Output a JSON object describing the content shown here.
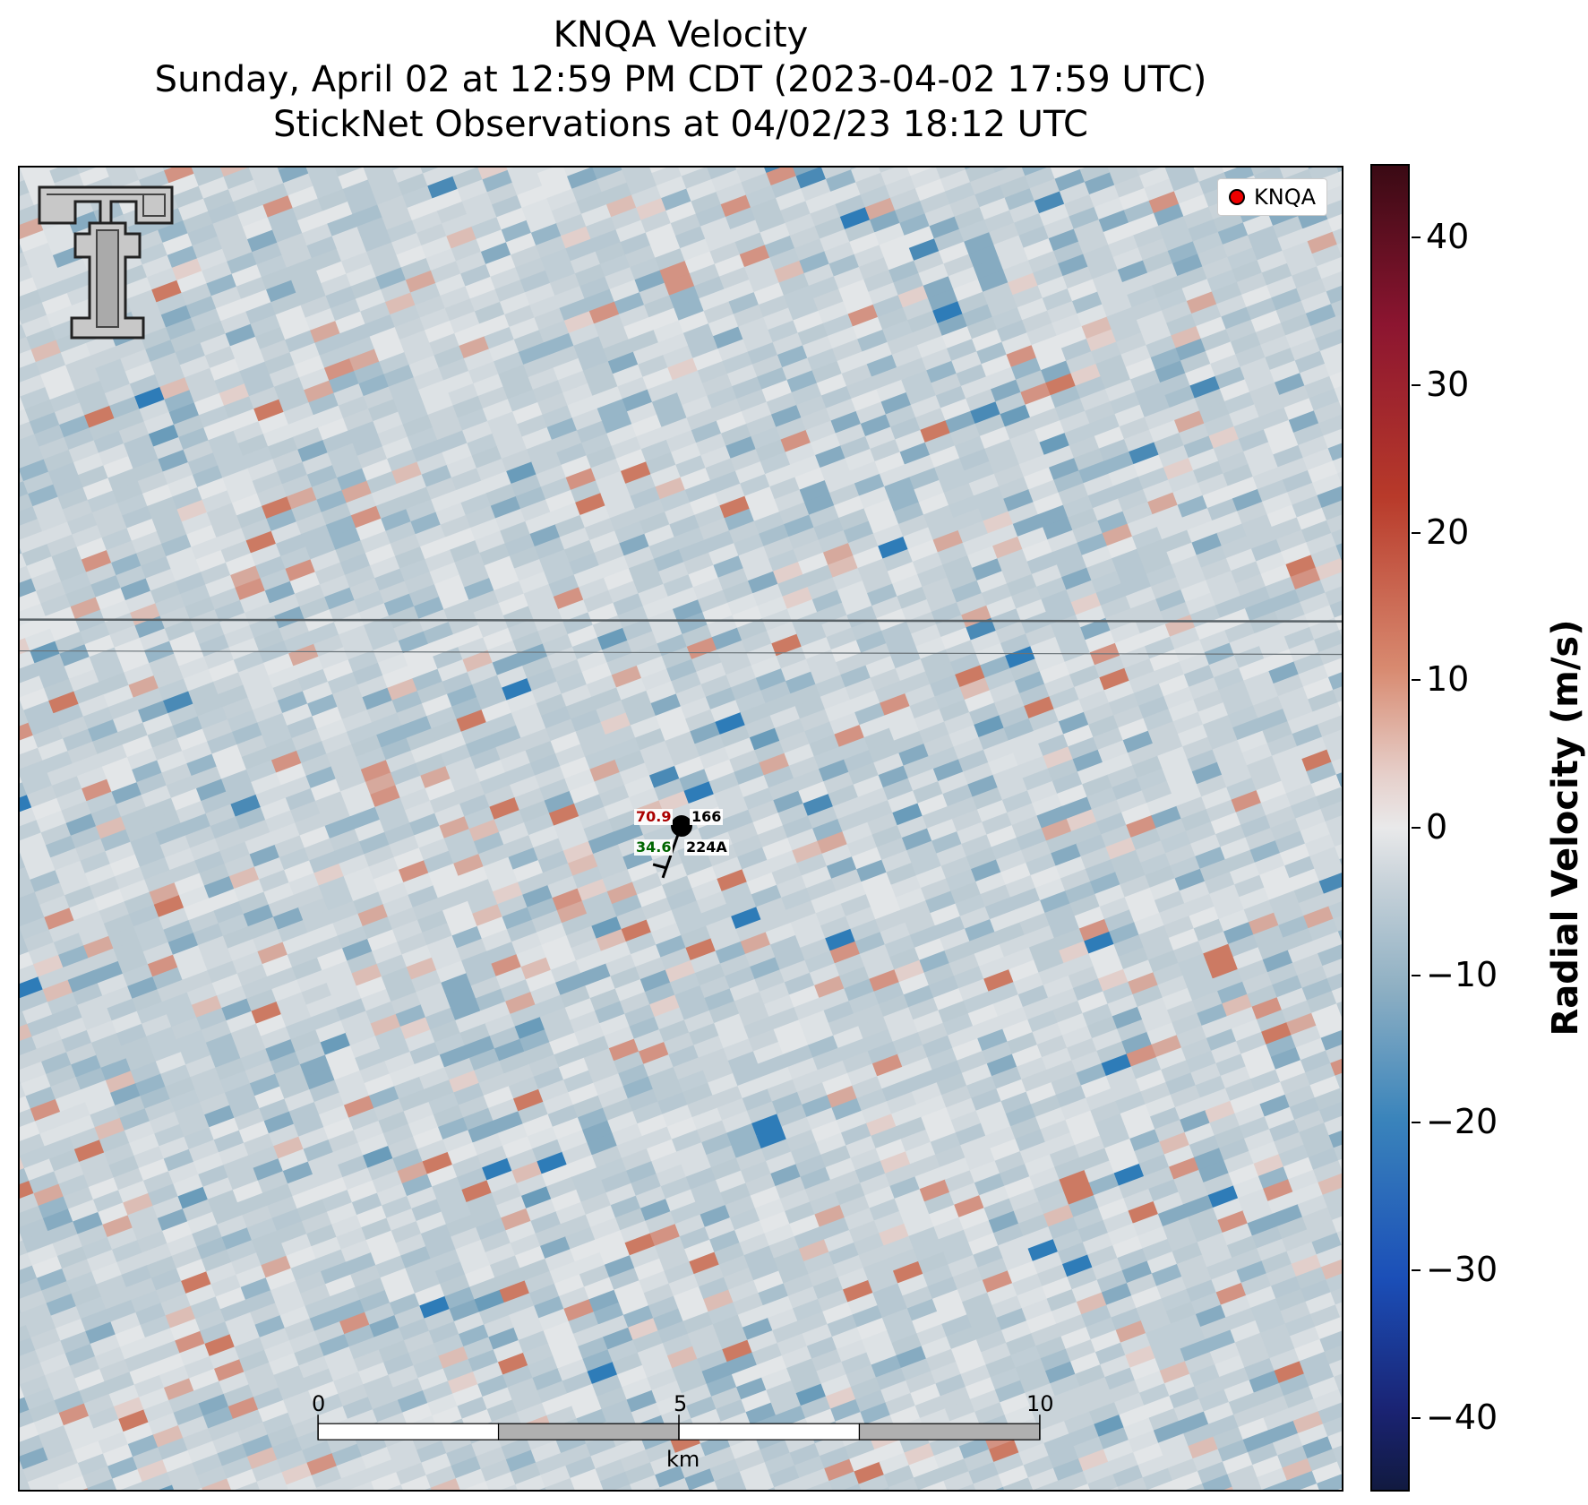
{
  "header": {
    "title": "KNQA Velocity",
    "subtitle1": "Sunday, April 02 at 12:59 PM CDT (2023-04-02 17:59 UTC)",
    "subtitle2": "StickNet Observations at 04/02/23 18:12 UTC"
  },
  "legend": {
    "label": "KNQA",
    "marker_color": "#ff0000"
  },
  "station": {
    "id": "224A",
    "temperature": "70.9",
    "dewpoint": "34.6",
    "pressure": "166",
    "temperature_color": "#aa0000",
    "dewpoint_color": "#006600"
  },
  "scale_bar": {
    "ticks": [
      "0",
      "5",
      "10"
    ],
    "unit": "km"
  },
  "colorbar": {
    "label": "Radial Velocity (m/s)",
    "range": [
      -45,
      45
    ],
    "ticks": [
      "40",
      "30",
      "20",
      "10",
      "0",
      "−10",
      "−20",
      "−30",
      "−40"
    ]
  },
  "logo": {
    "name": "texas-tech-double-t-logo"
  }
}
